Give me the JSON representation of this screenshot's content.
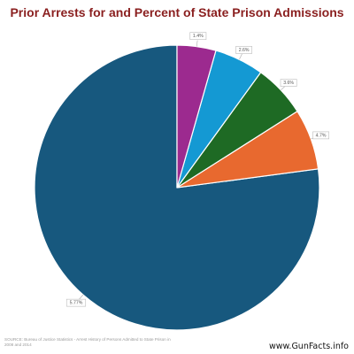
{
  "chart_data": {
    "type": "pie",
    "title": "Prior Arrests for and Percent of State Prison Admissions",
    "slices": [
      {
        "label": "5.77%",
        "value": 77.1,
        "color": "#17587e"
      },
      {
        "label": "4.7%",
        "value": 6.9,
        "color": "#e8692f"
      },
      {
        "label": "3.6%",
        "value": 6.0,
        "color": "#1e6a24"
      },
      {
        "label": "2.6%",
        "value": 5.6,
        "color": "#1499d3"
      },
      {
        "label": "1.4%",
        "value": 4.4,
        "color": "#9c2a8f"
      }
    ],
    "start": "12 o'clock",
    "direction": "counter-clockwise"
  },
  "source": "SOURCE: Bureau of Justice Statistics - Arrest History of Persons Admitted to State Prison in 2008 and 2014",
  "brand": "www.GunFacts.info"
}
